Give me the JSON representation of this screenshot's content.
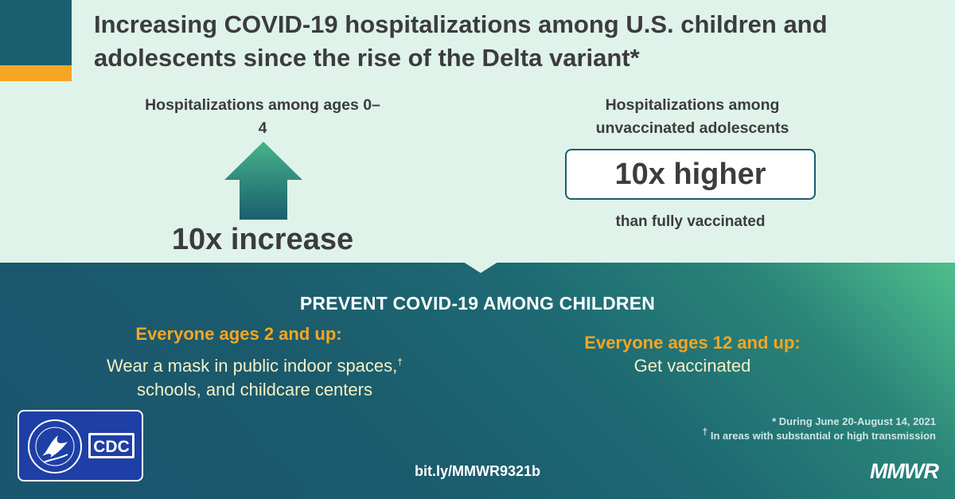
{
  "title": "Increasing COVID-19 hospitalizations among U.S. children and adolescents since the rise of the Delta variant*",
  "stat_left": {
    "label": "Hospitalizations among ages 0–4",
    "value": "10x increase",
    "icon": "up-arrow-icon"
  },
  "stat_right": {
    "label": "Hospitalizations among unvaccinated adolescents",
    "value": "10x higher",
    "sublabel": "than fully vaccinated"
  },
  "prevent": {
    "heading": "PREVENT COVID-19 AMONG CHILDREN",
    "left": {
      "audience": "Everyone ages 2 and up:",
      "line1": "Wear a mask in public indoor spaces,",
      "mark": "†",
      "line2": "schools, and childcare centers"
    },
    "right": {
      "audience": "Everyone ages 12 and up:",
      "action": "Get vaccinated"
    }
  },
  "footnotes": {
    "note1": "* During June 20-August 14, 2021",
    "note2_mark": "†",
    "note2": " In areas with substantial or high transmission"
  },
  "link": "bit.ly/MMWR9321b",
  "brand": "MMWR",
  "logos": {
    "hhs": "hhs-seal-logo",
    "cdc": "CDC"
  },
  "colors": {
    "accent_orange": "#f5a623",
    "dark_teal": "#1b5e6e",
    "light_mint": "#dff3ea",
    "text_dark": "#3c3c3c"
  }
}
